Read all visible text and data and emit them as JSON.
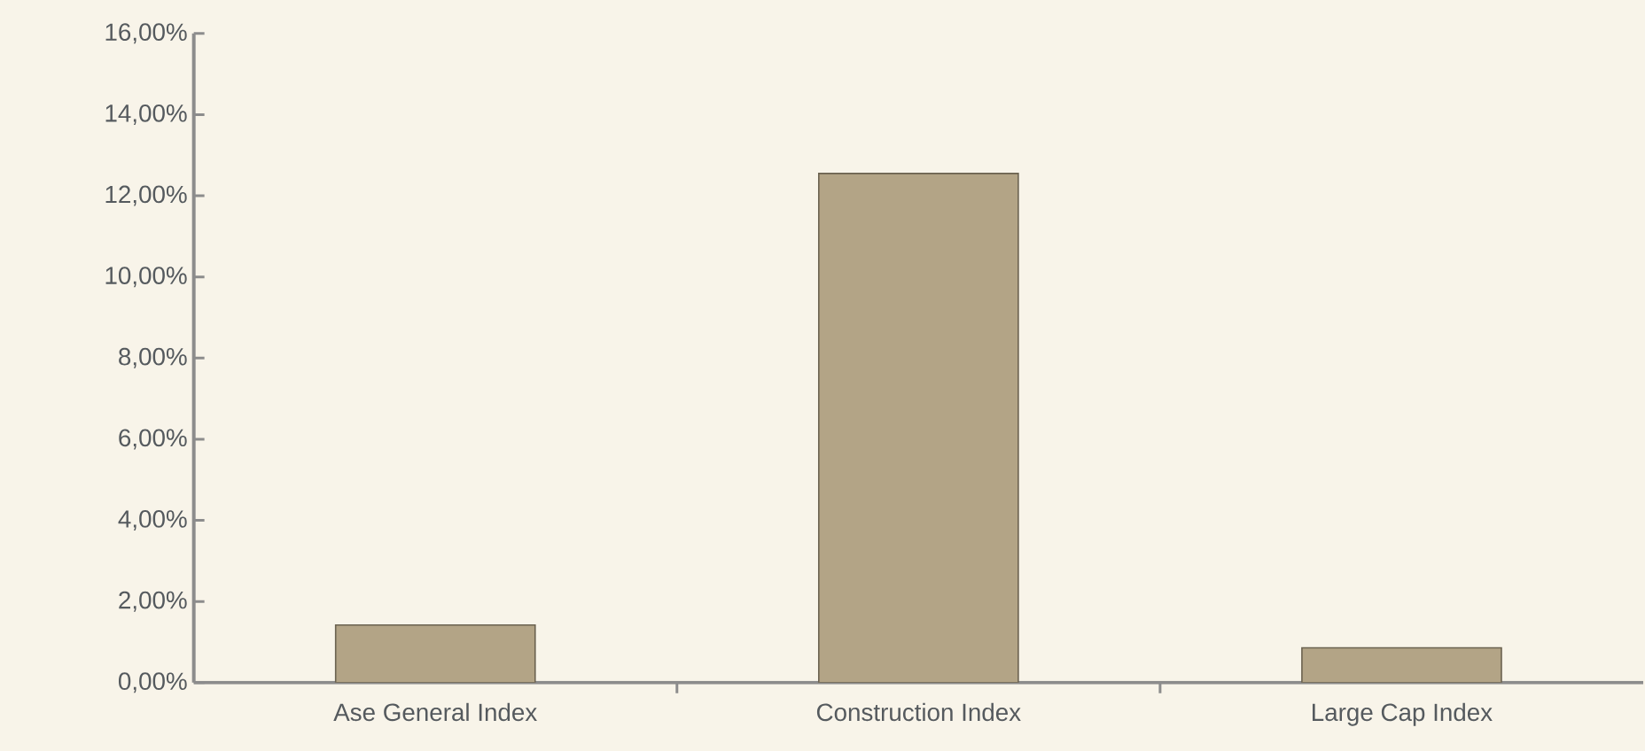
{
  "chart_data": {
    "type": "bar",
    "categories": [
      "Ase General Index",
      "Construction Index",
      "Large Cap Index"
    ],
    "values": [
      1.42,
      12.55,
      0.86
    ],
    "color": "#b3a486",
    "ylim": [
      0,
      16
    ],
    "yticks": [
      {
        "value": 0,
        "label": "0,00%"
      },
      {
        "value": 2,
        "label": "2,00%"
      },
      {
        "value": 4,
        "label": "4,00%"
      },
      {
        "value": 6,
        "label": "6,00%"
      },
      {
        "value": 8,
        "label": "8,00%"
      },
      {
        "value": 10,
        "label": "10,00%"
      },
      {
        "value": 12,
        "label": "12,00%"
      },
      {
        "value": 14,
        "label": "14,00%"
      },
      {
        "value": 16,
        "label": "16,00%"
      }
    ],
    "grid": false
  }
}
